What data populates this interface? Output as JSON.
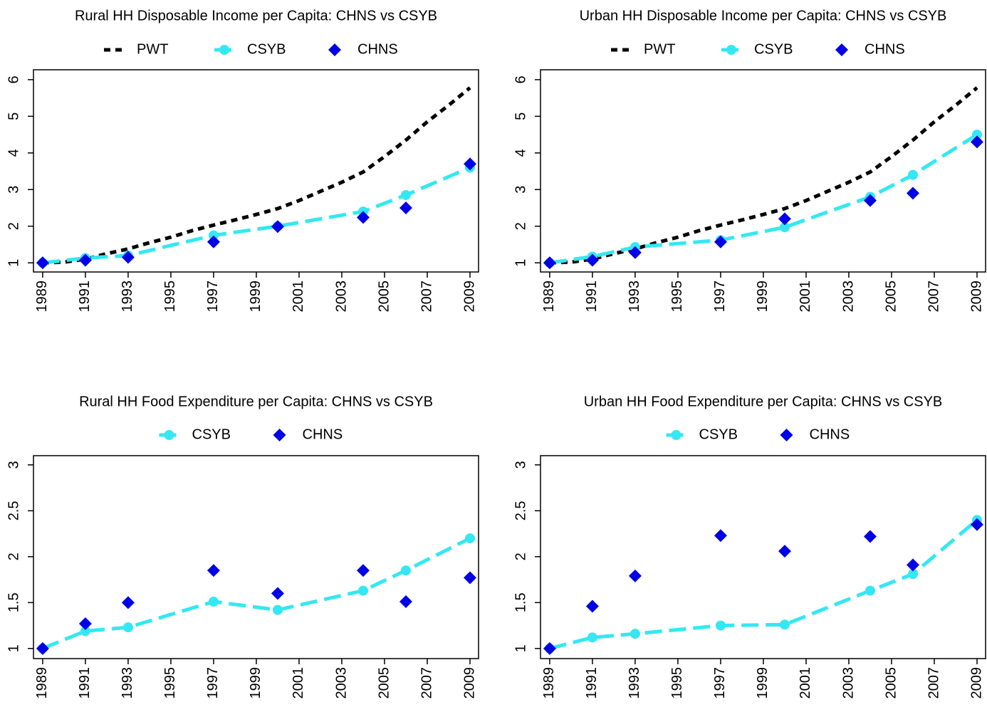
{
  "chart_data": [
    {
      "type": "line",
      "title": "Rural HH Disposable Income per Capita: CHNS vs CSYB",
      "xlim": [
        1988.57,
        2009.4
      ],
      "ylim": [
        0.75,
        6.27
      ],
      "xticks": [
        1989,
        1991,
        1993,
        1995,
        1997,
        1999,
        2001,
        2003,
        2005,
        2007,
        2009
      ],
      "yticks": [
        1,
        2,
        3,
        4,
        5,
        6
      ],
      "legend": "top",
      "series": [
        {
          "name": "PWT",
          "color": "#000000",
          "line": "dotted",
          "marker": null,
          "x": [
            1989,
            1990,
            1991,
            1992,
            1993,
            1994,
            1995,
            1996,
            1997,
            1998,
            1999,
            2000,
            2001,
            2002,
            2003,
            2004,
            2005,
            2006,
            2007,
            2008,
            2009
          ],
          "values": [
            1.0,
            1.02,
            1.1,
            1.25,
            1.38,
            1.55,
            1.7,
            1.88,
            2.03,
            2.17,
            2.32,
            2.48,
            2.7,
            2.95,
            3.2,
            3.48,
            3.9,
            4.35,
            4.85,
            5.3,
            5.78
          ]
        },
        {
          "name": "CSYB",
          "color": "#33e8f2",
          "line": "dashed",
          "marker": "circle",
          "x": [
            1989,
            1991,
            1993,
            1997,
            2000,
            2004,
            2006,
            2009
          ],
          "values": [
            1.0,
            1.13,
            1.2,
            1.75,
            2.0,
            2.4,
            2.85,
            3.6
          ]
        },
        {
          "name": "CHNS",
          "color": "#0000e6",
          "line": null,
          "marker": "diamond",
          "x": [
            1989,
            1991,
            1993,
            1997,
            2000,
            2004,
            2006,
            2009
          ],
          "values": [
            1.0,
            1.07,
            1.15,
            1.57,
            1.99,
            2.24,
            2.5,
            3.7
          ]
        }
      ]
    },
    {
      "type": "line",
      "title": "Urban HH Disposable Income per Capita: CHNS vs CSYB",
      "xlim": [
        1988.57,
        2009.4
      ],
      "ylim": [
        0.75,
        6.27
      ],
      "xticks": [
        1989,
        1991,
        1993,
        1995,
        1997,
        1999,
        2001,
        2003,
        2005,
        2007,
        2009
      ],
      "yticks": [
        1,
        2,
        3,
        4,
        5,
        6
      ],
      "legend": "top",
      "series": [
        {
          "name": "PWT",
          "color": "#000000",
          "line": "dotted",
          "marker": null,
          "x": [
            1989,
            1990,
            1991,
            1992,
            1993,
            1994,
            1995,
            1996,
            1997,
            1998,
            1999,
            2000,
            2001,
            2002,
            2003,
            2004,
            2005,
            2006,
            2007,
            2008,
            2009
          ],
          "values": [
            1.0,
            1.02,
            1.1,
            1.25,
            1.38,
            1.55,
            1.7,
            1.88,
            2.03,
            2.17,
            2.32,
            2.48,
            2.7,
            2.95,
            3.2,
            3.48,
            3.9,
            4.35,
            4.85,
            5.3,
            5.78
          ]
        },
        {
          "name": "CSYB",
          "color": "#33e8f2",
          "line": "dashed",
          "marker": "circle",
          "x": [
            1989,
            1991,
            1993,
            1997,
            2000,
            2004,
            2006,
            2009
          ],
          "values": [
            1.0,
            1.17,
            1.43,
            1.62,
            1.97,
            2.8,
            3.4,
            4.5
          ]
        },
        {
          "name": "CHNS",
          "color": "#0000e6",
          "line": null,
          "marker": "diamond",
          "x": [
            1989,
            1991,
            1993,
            1997,
            2000,
            2004,
            2006,
            2009
          ],
          "values": [
            1.0,
            1.07,
            1.28,
            1.57,
            2.2,
            2.7,
            2.9,
            4.3
          ]
        }
      ]
    },
    {
      "type": "line",
      "title": "Rural HH Food Expenditure per Capita: CHNS vs CSYB",
      "xlim": [
        1988.57,
        2009.4
      ],
      "ylim": [
        0.89,
        3.1
      ],
      "xticks": [
        1989,
        1991,
        1993,
        1995,
        1997,
        1999,
        2001,
        2003,
        2005,
        2007,
        2009
      ],
      "yticks": [
        1,
        1.5,
        2,
        2.5,
        3
      ],
      "legend": "top",
      "series": [
        {
          "name": "CSYB",
          "color": "#33e8f2",
          "line": "dashed",
          "marker": "circle",
          "x": [
            1989,
            1991,
            1993,
            1997,
            2000,
            2004,
            2006,
            2009
          ],
          "values": [
            1.0,
            1.19,
            1.23,
            1.51,
            1.42,
            1.63,
            1.85,
            2.2
          ]
        },
        {
          "name": "CHNS",
          "color": "#0000e6",
          "line": null,
          "marker": "diamond",
          "x": [
            1989,
            1991,
            1993,
            1997,
            2000,
            2004,
            2006,
            2009
          ],
          "values": [
            1.0,
            1.27,
            1.5,
            1.85,
            1.6,
            1.85,
            1.51,
            1.77
          ]
        }
      ]
    },
    {
      "type": "line",
      "title": "Urban HH Food Expenditure per Capita: CHNS vs CSYB",
      "xlim": [
        1988.57,
        2009.4
      ],
      "ylim": [
        0.89,
        3.1
      ],
      "xticks": [
        1989,
        1991,
        1993,
        1995,
        1997,
        1999,
        2001,
        2003,
        2005,
        2007,
        2009
      ],
      "yticks": [
        1,
        1.5,
        2,
        2.5,
        3
      ],
      "legend": "top",
      "series": [
        {
          "name": "CSYB",
          "color": "#33e8f2",
          "line": "dashed",
          "marker": "circle",
          "x": [
            1989,
            1991,
            1993,
            1997,
            2000,
            2004,
            2006,
            2009
          ],
          "values": [
            1.0,
            1.12,
            1.16,
            1.25,
            1.26,
            1.63,
            1.81,
            2.4
          ]
        },
        {
          "name": "CHNS",
          "color": "#0000e6",
          "line": null,
          "marker": "diamond",
          "x": [
            1989,
            1991,
            1993,
            1997,
            2000,
            2004,
            2006,
            2009
          ],
          "values": [
            1.0,
            1.46,
            1.79,
            2.23,
            2.06,
            2.22,
            1.91,
            2.35
          ]
        }
      ]
    }
  ]
}
